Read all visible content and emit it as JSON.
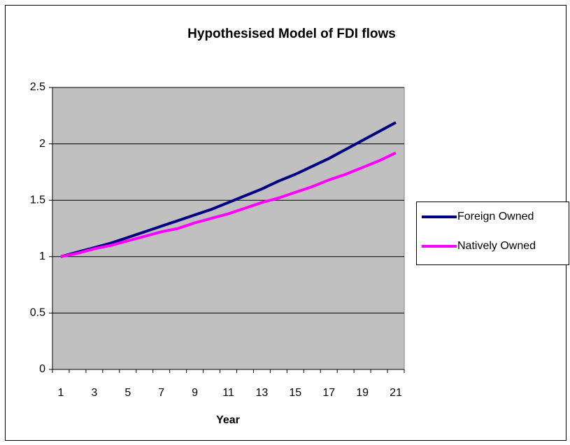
{
  "chart_data": {
    "type": "line",
    "title": "Hypothesised Model of FDI flows",
    "x_label": "Year",
    "categories": [
      1,
      null,
      3,
      null,
      5,
      null,
      7,
      null,
      9,
      null,
      11,
      null,
      13,
      null,
      15,
      null,
      17,
      null,
      19,
      null,
      21
    ],
    "series": [
      {
        "name": "Foreign Owned",
        "color": "#000080",
        "values": [
          1,
          1.04,
          1.08,
          1.12,
          1.17,
          1.22,
          1.27,
          1.32,
          1.37,
          1.42,
          1.48,
          1.54,
          1.6,
          1.67,
          1.73,
          1.8,
          1.87,
          1.95,
          2.03,
          2.11,
          2.19
        ]
      },
      {
        "name": "Natively Owned",
        "color": "#ff00ff",
        "values": [
          1,
          1.03,
          1.07,
          1.1,
          1.14,
          1.18,
          1.22,
          1.25,
          1.3,
          1.34,
          1.38,
          1.43,
          1.48,
          1.52,
          1.57,
          1.62,
          1.68,
          1.73,
          1.79,
          1.85,
          1.92
        ]
      }
    ],
    "ylim": [
      0,
      2.5
    ],
    "yticks": [
      0,
      0.5,
      1,
      1.5,
      2,
      2.5
    ],
    "grid": true,
    "legend": "right",
    "plot_background": "#c0c0c0"
  }
}
